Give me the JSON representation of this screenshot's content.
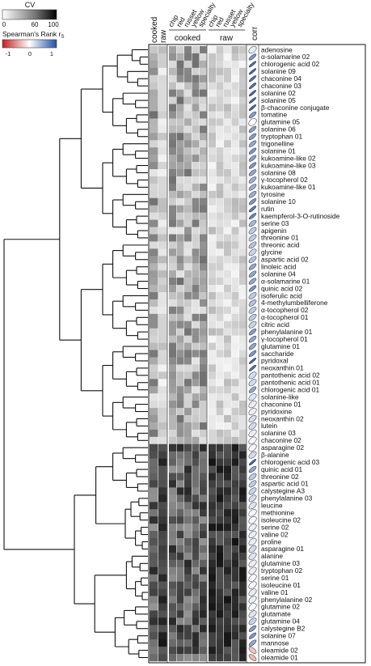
{
  "chart_data": {
    "type": "heatmap",
    "cv_legend": {
      "title": "CV",
      "ticks": [
        "0",
        "60",
        "100"
      ],
      "range": [
        0,
        100
      ]
    },
    "corr_legend": {
      "title": "Spearman's Rank r",
      "title_sub": "S",
      "ticks": [
        "-1",
        "0",
        "1"
      ],
      "range": [
        -1,
        1
      ]
    },
    "column_groups": [
      {
        "label": "cooked",
        "columns": [
          "chip",
          "red",
          "russet",
          "yellow",
          "specialty"
        ]
      },
      {
        "label": "raw",
        "columns": [
          "chip",
          "red",
          "russet",
          "yellow",
          "specialty"
        ]
      }
    ],
    "overall_columns": [
      "cooked",
      "raw"
    ],
    "corr_label": "corr",
    "metabolites": [
      "adenosine",
      "α-solamarine 02",
      "chlorogenic acid 02",
      "solanine 09",
      "chaconine 04",
      "chaconine 03",
      "solanine 02",
      "solanine 05",
      "β-chaconine conjugate",
      "tomatine",
      "glutamine 05",
      "solanine 06",
      "tryptophan 01",
      "trigonelline",
      "solanine 01",
      "kukoamine-like 02",
      "kukoamine-like 03",
      "solanine 08",
      "γ-tocopherol 02",
      "kukoamine-like 01",
      "tyrosine",
      "solanine 10",
      "rutin",
      "kaempferol-3-O-rutinoside",
      "serine 03",
      "apigenin",
      "threonine 01",
      "threonic acid",
      "glycine",
      "aspartic acid 02",
      "linoleic acid",
      "solanine 04",
      "α-solamarine 01",
      "quinic acid 02",
      "isoferulic acid",
      "4-methylumbelliferone",
      "α-tocopherol 02",
      "α-tocopherol 01",
      "citric acid",
      "phenylalanine 01",
      "γ-tocopherol 01",
      "glutamine 01",
      "saccharide",
      "pyridoxal",
      "neoxanthin 01",
      "pantothenic acid 02",
      "pantothenic acid 01",
      "chlorogenic acid 01",
      "solanine-like",
      "chaconine 01",
      "pyridoxine",
      "neoxanthin 02",
      "lutein",
      "solanine 03",
      "chaconine 02",
      "asparagine 02",
      "β-alanine",
      "chlorogenic acid 03",
      "quinic acid 01",
      "threonine 02",
      "aspartic acid 01",
      "calystegine A3",
      "phenylalanine 03",
      "leucine",
      "methionine",
      "isoleucine 02",
      "serine 02",
      "valine 02",
      "proline",
      "asparagine 01",
      "alanine",
      "glutamine 03",
      "tryptophan 02",
      "serine 01",
      "isoleucine 01",
      "valine 01",
      "phenylalanine 02",
      "glutamine 02",
      "glutamate",
      "glutamine 04",
      "calystegine B2",
      "solanine 07",
      "mannose",
      "oleamide 02",
      "oleamide 01"
    ],
    "corr": [
      0.1,
      0.6,
      0.85,
      0.85,
      0.8,
      0.8,
      0.85,
      0.85,
      0.85,
      0.55,
      0.0,
      0.55,
      0.55,
      0.5,
      0.6,
      0.55,
      0.6,
      0.5,
      0.45,
      0.45,
      0.45,
      0.6,
      0.75,
      0.7,
      0.4,
      0.3,
      0.3,
      0.35,
      0.25,
      0.35,
      0.5,
      0.5,
      0.5,
      0.6,
      0.3,
      0.35,
      0.3,
      0.3,
      0.25,
      0.55,
      0.5,
      0.5,
      0.6,
      0.85,
      0.8,
      0.2,
      0.2,
      0.5,
      0.15,
      0.1,
      0.1,
      0.2,
      0.2,
      0.1,
      0.05,
      0.05,
      0.2,
      0.85,
      0.5,
      0.3,
      0.3,
      0.25,
      0.2,
      0.15,
      0.05,
      0.05,
      0.1,
      0.1,
      0.1,
      0.2,
      0.15,
      0.1,
      0.1,
      0.05,
      0.05,
      0.1,
      0.1,
      0.05,
      0.15,
      0.25,
      0.55,
      0.6,
      0.5,
      -0.3,
      -0.35
    ]
  }
}
